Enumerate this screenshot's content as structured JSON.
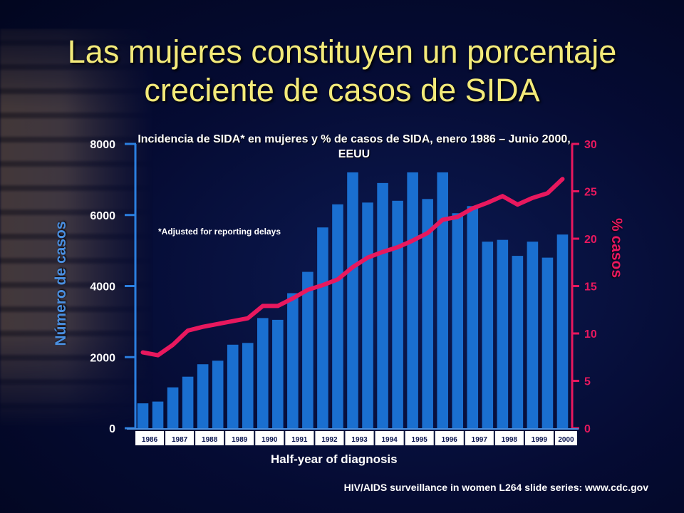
{
  "slide": {
    "title_line1": "Las mujeres constituyen un porcentaje",
    "title_line2": "creciente de casos de SIDA",
    "source": "HIV/AIDS surveillance in women L264 slide series: www.cdc.gov"
  },
  "chart_data": {
    "type": "bar",
    "title": "Incidencia de SIDA* en mujeres y % de casos de SIDA, enero 1986 – Junio 2000, EEUU",
    "annotation": "*Adjusted for reporting delays",
    "xlabel": "Half-year of diagnosis",
    "ylabel_left": "Número de casos",
    "ylabel_right": "% casos",
    "year_labels": [
      "1986",
      "1987",
      "1988",
      "1989",
      "1990",
      "1991",
      "1992",
      "1993",
      "1994",
      "1995",
      "1996",
      "1997",
      "1998",
      "1999",
      "2000"
    ],
    "y_left_ticks": [
      "0",
      "2000",
      "4000",
      "6000",
      "8000"
    ],
    "y_right_ticks": [
      "0",
      "5",
      "10",
      "15",
      "20",
      "25",
      "30"
    ],
    "ylim_left": [
      0,
      8000
    ],
    "ylim_right": [
      0,
      30
    ],
    "grid": false,
    "colors": {
      "bars": "#1a6fd0",
      "line": "#e8185e",
      "left_axis": "#2b7fe0",
      "right_axis": "#e8185e"
    },
    "series": [
      {
        "name": "Número de casos",
        "kind": "bar",
        "values": [
          700,
          750,
          1150,
          1450,
          1800,
          1900,
          2350,
          2400,
          3100,
          3050,
          3800,
          4400,
          5650,
          6300,
          7200,
          6350,
          6900,
          6400,
          7200,
          6450,
          7200,
          6050,
          6250,
          5250,
          5300,
          4850,
          5250,
          4800,
          5450
        ]
      },
      {
        "name": "% casos",
        "kind": "line",
        "values": [
          8.0,
          7.7,
          8.8,
          10.3,
          10.7,
          11.0,
          11.3,
          11.6,
          12.9,
          12.9,
          13.7,
          14.6,
          15.1,
          15.7,
          17.0,
          18.0,
          18.6,
          19.1,
          19.8,
          20.6,
          22.0,
          22.3,
          23.2,
          23.8,
          24.5,
          23.6,
          24.3,
          24.8,
          26.3
        ]
      }
    ]
  }
}
